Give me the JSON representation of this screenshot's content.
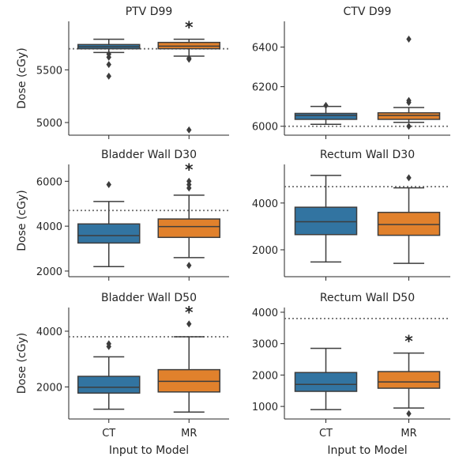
{
  "figure": {
    "common_xlabel": "Input to Model",
    "common_ylabel": "Dose (cGy)"
  },
  "colors": {
    "CT": "#3274a1",
    "MR": "#e1812c",
    "median_line": "#3d3d3d",
    "threshold_line": "#6e6e6e"
  },
  "chart_data": [
    {
      "type": "box",
      "title": "PTV D99",
      "ylabel": "Dose (cGy)",
      "xlabel": "",
      "categories": [
        "CT",
        "MR"
      ],
      "ylim": [
        4880,
        5960
      ],
      "yticks": [
        5000,
        5500
      ],
      "threshold": 5700,
      "boxes": [
        {
          "label": "CT",
          "whisker_low": 5665,
          "q1": 5700,
          "median": 5718,
          "q3": 5740,
          "whisker_high": 5790,
          "outliers": [
            5650,
            5620,
            5550,
            5440
          ]
        },
        {
          "label": "MR",
          "whisker_low": 5630,
          "q1": 5700,
          "median": 5725,
          "q3": 5760,
          "whisker_high": 5790,
          "outliers": [
            5610,
            5600,
            4930
          ]
        }
      ],
      "significance": [
        {
          "category": "MR",
          "marker": "*"
        }
      ]
    },
    {
      "type": "box",
      "title": "CTV D99",
      "ylabel": "",
      "xlabel": "",
      "categories": [
        "CT",
        "MR"
      ],
      "ylim": [
        5955,
        6530
      ],
      "yticks": [
        6000,
        6200,
        6400
      ],
      "threshold": 6000,
      "boxes": [
        {
          "label": "CT",
          "whisker_low": 6010,
          "q1": 6035,
          "median": 6055,
          "q3": 6065,
          "whisker_high": 6100,
          "outliers": [
            6105
          ]
        },
        {
          "label": "MR",
          "whisker_low": 6020,
          "q1": 6035,
          "median": 6055,
          "q3": 6068,
          "whisker_high": 6095,
          "outliers": [
            6440,
            6130,
            6120,
            6000
          ]
        }
      ],
      "significance": []
    },
    {
      "type": "box",
      "title": "Bladder Wall D30",
      "ylabel": "Dose (cGy)",
      "xlabel": "",
      "categories": [
        "CT",
        "MR"
      ],
      "ylim": [
        1750,
        6750
      ],
      "yticks": [
        2000,
        4000,
        6000
      ],
      "threshold": 4700,
      "boxes": [
        {
          "label": "CT",
          "whisker_low": 2200,
          "q1": 3250,
          "median": 3580,
          "q3": 4100,
          "whisker_high": 5100,
          "outliers": [
            5850
          ]
        },
        {
          "label": "MR",
          "whisker_low": 2600,
          "q1": 3500,
          "median": 3980,
          "q3": 4320,
          "whisker_high": 5380,
          "outliers": [
            6000,
            5850,
            5700,
            2250
          ]
        }
      ],
      "significance": [
        {
          "category": "MR",
          "marker": "*"
        }
      ]
    },
    {
      "type": "box",
      "title": "Rectum Wall D30",
      "ylabel": "",
      "xlabel": "",
      "categories": [
        "CT",
        "MR"
      ],
      "ylim": [
        850,
        5650
      ],
      "yticks": [
        2000,
        4000
      ],
      "threshold": 4700,
      "boxes": [
        {
          "label": "CT",
          "whisker_low": 1480,
          "q1": 2650,
          "median": 3200,
          "q3": 3820,
          "whisker_high": 5180,
          "outliers": []
        },
        {
          "label": "MR",
          "whisker_low": 1420,
          "q1": 2620,
          "median": 3080,
          "q3": 3600,
          "whisker_high": 4650,
          "outliers": [
            5080
          ]
        }
      ],
      "significance": []
    },
    {
      "type": "box",
      "title": "Bladder Wall D50",
      "ylabel": "Dose (cGy)",
      "xlabel": "Input to Model",
      "categories": [
        "CT",
        "MR"
      ],
      "ylim": [
        850,
        4850
      ],
      "yticks": [
        2000,
        4000
      ],
      "threshold": 3800,
      "boxes": [
        {
          "label": "CT",
          "whisker_low": 1200,
          "q1": 1780,
          "median": 1990,
          "q3": 2380,
          "whisker_high": 3080,
          "outliers": [
            3550,
            3450
          ]
        },
        {
          "label": "MR",
          "whisker_low": 1100,
          "q1": 1820,
          "median": 2200,
          "q3": 2620,
          "whisker_high": 3800,
          "outliers": [
            4260
          ]
        }
      ],
      "significance": [
        {
          "category": "MR",
          "marker": "*"
        }
      ]
    },
    {
      "type": "box",
      "title": "Rectum Wall D50",
      "ylabel": "",
      "xlabel": "Input to Model",
      "categories": [
        "CT",
        "MR"
      ],
      "ylim": [
        600,
        4150
      ],
      "yticks": [
        1000,
        2000,
        3000,
        4000
      ],
      "threshold": 3800,
      "boxes": [
        {
          "label": "CT",
          "whisker_low": 900,
          "q1": 1480,
          "median": 1700,
          "q3": 2080,
          "whisker_high": 2850,
          "outliers": []
        },
        {
          "label": "MR",
          "whisker_low": 950,
          "q1": 1580,
          "median": 1780,
          "q3": 2110,
          "whisker_high": 2700,
          "outliers": [
            770
          ]
        }
      ],
      "significance": [
        {
          "category": "MR",
          "marker": "*"
        }
      ]
    }
  ]
}
